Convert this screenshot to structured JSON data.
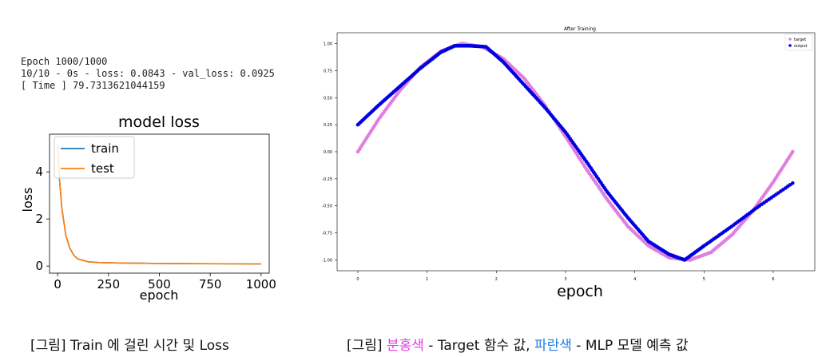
{
  "console": {
    "line1": "Epoch 1000/1000",
    "line2": "10/10 - 0s - loss: 0.0843 - val_loss: 0.0925",
    "line3": "[ Time ] 79.7313621044159"
  },
  "captions": {
    "left": "[그림] Train 에 걸린 시간 및 Loss",
    "right_prefix": "[그림] ",
    "right_pink": "분홍색",
    "right_mid": " - Target 함수 값, ",
    "right_blue": "파란색",
    "right_suffix": " - MLP 모델 예측 값"
  },
  "chart_data": [
    {
      "type": "line",
      "title": "model loss",
      "xlabel": "epoch",
      "ylabel": "loss",
      "xlim": [
        -40,
        1040
      ],
      "ylim": [
        -0.3,
        5.6
      ],
      "xticks": [
        0,
        250,
        500,
        750,
        1000
      ],
      "yticks": [
        0,
        2,
        4
      ],
      "legend_position": "top-left",
      "grid": false,
      "series": [
        {
          "name": "train",
          "color": "#1f77b4",
          "x": [
            0,
            10,
            20,
            40,
            60,
            80,
            100,
            150,
            200,
            300,
            400,
            500,
            700,
            1000
          ],
          "values": [
            5.2,
            3.6,
            2.5,
            1.3,
            0.75,
            0.45,
            0.3,
            0.18,
            0.15,
            0.13,
            0.12,
            0.11,
            0.1,
            0.09
          ]
        },
        {
          "name": "test",
          "color": "#ff7f0e",
          "x": [
            0,
            10,
            20,
            40,
            60,
            80,
            100,
            150,
            200,
            300,
            400,
            500,
            700,
            1000
          ],
          "values": [
            5.2,
            3.6,
            2.5,
            1.3,
            0.75,
            0.45,
            0.3,
            0.18,
            0.15,
            0.13,
            0.12,
            0.11,
            0.1,
            0.09
          ]
        }
      ]
    },
    {
      "type": "scatter",
      "title": "After Training",
      "xlabel": "epoch",
      "ylabel": "",
      "xlim": [
        -0.3,
        6.6
      ],
      "ylim": [
        -1.1,
        1.1
      ],
      "xticks": [
        0,
        1,
        2,
        3,
        4,
        5,
        6
      ],
      "yticks": [
        -1.0,
        -0.75,
        -0.5,
        -0.25,
        0.0,
        0.25,
        0.5,
        0.75,
        1.0
      ],
      "ytick_labels": [
        "-1.00",
        "-0.75",
        "-0.50",
        "-0.25",
        "0.00",
        "0.25",
        "0.50",
        "0.75",
        "1.00"
      ],
      "legend_position": "top-right",
      "grid": false,
      "series": [
        {
          "name": "target",
          "color": "#e07ee0",
          "x": [
            0.0,
            0.3,
            0.6,
            0.9,
            1.2,
            1.5,
            1.8,
            2.1,
            2.4,
            2.7,
            3.0,
            3.3,
            3.6,
            3.9,
            4.2,
            4.5,
            4.8,
            5.1,
            5.4,
            5.7,
            6.0,
            6.28
          ],
          "values": [
            0.0,
            0.3,
            0.56,
            0.78,
            0.93,
            1.0,
            0.97,
            0.86,
            0.68,
            0.43,
            0.14,
            -0.16,
            -0.44,
            -0.69,
            -0.87,
            -0.98,
            -1.0,
            -0.93,
            -0.77,
            -0.55,
            -0.28,
            0.0
          ]
        },
        {
          "name": "output",
          "color": "#0000e0",
          "x": [
            0.0,
            0.3,
            0.6,
            0.9,
            1.2,
            1.4,
            1.6,
            1.85,
            2.1,
            2.4,
            2.7,
            3.0,
            3.3,
            3.6,
            3.9,
            4.2,
            4.5,
            4.72,
            5.0,
            5.4,
            5.8,
            6.28
          ],
          "values": [
            0.25,
            0.43,
            0.6,
            0.77,
            0.92,
            0.98,
            0.98,
            0.97,
            0.83,
            0.62,
            0.41,
            0.18,
            -0.09,
            -0.37,
            -0.61,
            -0.83,
            -0.95,
            -1.0,
            -0.87,
            -0.69,
            -0.5,
            -0.29
          ]
        }
      ]
    }
  ]
}
